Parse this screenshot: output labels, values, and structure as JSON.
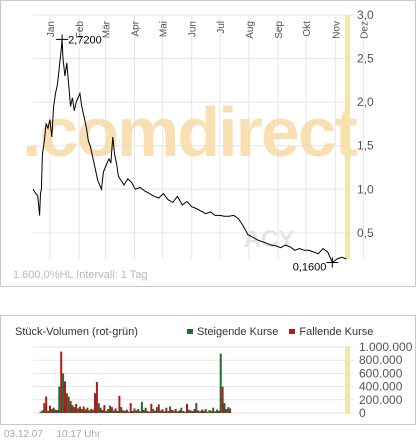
{
  "watermark": {
    "brand": ".comdirect",
    "ticker": "ACY"
  },
  "footer": {
    "interval_text": "1.600,0%HL Intervall: 1 Tag"
  },
  "timestamp": {
    "date": "03.12.07",
    "time": "10:17 Uhr"
  },
  "colors": {
    "rising": "#1a6e2e",
    "falling": "#b01c1c",
    "highlight": "#f5e5a8",
    "watermark_orange": "#f7dba6",
    "watermark_gray": "#e4e4e4",
    "line": "#000000"
  },
  "chart_data": [
    {
      "type": "line",
      "title": "",
      "x_ticks": [
        "Jan",
        "Feb",
        "Mär",
        "Apr",
        "Mai",
        "Jun",
        "Jul",
        "Aug",
        "Sep",
        "Okt",
        "Nov",
        "Dez"
      ],
      "y_ticks": [
        "0,5",
        "1,0",
        "1,5",
        "2,0",
        "2,5",
        "3,0"
      ],
      "ylim": [
        0.2,
        3.0
      ],
      "grid": true,
      "annotations": [
        {
          "label": "2,7200",
          "value": 2.72,
          "date": "2007-02-01"
        },
        {
          "label": "0,1600",
          "value": 0.16,
          "date": "2007-11-16"
        }
      ],
      "series": [
        {
          "x": [
            "2007-01-01",
            "2007-01-04",
            "2007-01-06",
            "2007-01-08",
            "2007-01-09",
            "2007-01-10",
            "2007-01-11",
            "2007-01-13",
            "2007-01-15",
            "2007-01-17",
            "2007-01-19",
            "2007-01-21",
            "2007-01-23",
            "2007-01-25",
            "2007-01-27",
            "2007-01-29",
            "2007-01-31",
            "2007-02-01",
            "2007-02-02",
            "2007-02-04",
            "2007-02-06",
            "2007-02-08",
            "2007-02-10",
            "2007-02-12",
            "2007-02-14",
            "2007-02-16",
            "2007-02-18",
            "2007-02-20",
            "2007-02-22",
            "2007-02-24",
            "2007-02-27",
            "2007-03-01",
            "2007-03-03",
            "2007-03-05",
            "2007-03-07",
            "2007-03-09",
            "2007-03-11",
            "2007-03-13",
            "2007-03-15",
            "2007-03-17",
            "2007-03-19",
            "2007-03-21",
            "2007-03-23",
            "2007-03-25",
            "2007-03-26",
            "2007-03-27",
            "2007-03-29",
            "2007-03-31",
            "2007-04-02",
            "2007-04-05",
            "2007-04-08",
            "2007-04-12",
            "2007-04-16",
            "2007-04-20",
            "2007-04-25",
            "2007-04-30",
            "2007-05-05",
            "2007-05-10",
            "2007-05-15",
            "2007-05-20",
            "2007-05-25",
            "2007-05-30",
            "2007-06-04",
            "2007-06-09",
            "2007-06-14",
            "2007-06-19",
            "2007-06-24",
            "2007-06-29",
            "2007-07-04",
            "2007-07-09",
            "2007-07-14",
            "2007-07-19",
            "2007-07-24",
            "2007-07-29",
            "2007-08-03",
            "2007-08-08",
            "2007-08-13",
            "2007-08-18",
            "2007-08-23",
            "2007-08-28",
            "2007-09-02",
            "2007-09-07",
            "2007-09-12",
            "2007-09-17",
            "2007-09-22",
            "2007-09-27",
            "2007-10-02",
            "2007-10-07",
            "2007-10-12",
            "2007-10-17",
            "2007-10-22",
            "2007-10-27",
            "2007-11-01",
            "2007-11-06",
            "2007-11-11",
            "2007-11-16",
            "2007-11-21",
            "2007-11-26",
            "2007-12-01"
          ],
          "values": [
            1.0,
            0.95,
            0.93,
            0.7,
            0.95,
            1.0,
            1.4,
            1.55,
            1.75,
            1.7,
            1.8,
            1.6,
            1.95,
            2.1,
            2.2,
            2.4,
            2.6,
            2.72,
            2.5,
            2.3,
            2.45,
            2.2,
            1.95,
            2.05,
            1.9,
            2.0,
            2.05,
            2.1,
            1.95,
            1.85,
            1.7,
            1.55,
            1.5,
            1.4,
            1.3,
            1.2,
            1.1,
            1.05,
            1.0,
            1.2,
            1.25,
            1.3,
            1.35,
            1.3,
            1.45,
            1.6,
            1.4,
            1.3,
            1.15,
            1.1,
            1.05,
            1.12,
            1.08,
            1.0,
            1.02,
            0.98,
            0.95,
            0.92,
            0.9,
            0.95,
            0.88,
            0.85,
            0.92,
            0.82,
            0.86,
            0.8,
            0.78,
            0.75,
            0.72,
            0.74,
            0.7,
            0.7,
            0.69,
            0.69,
            0.7,
            0.66,
            0.58,
            0.48,
            0.45,
            0.42,
            0.4,
            0.38,
            0.36,
            0.35,
            0.33,
            0.36,
            0.34,
            0.3,
            0.32,
            0.3,
            0.3,
            0.28,
            0.26,
            0.32,
            0.28,
            0.16,
            0.2,
            0.22,
            0.2
          ]
        }
      ]
    },
    {
      "type": "bar",
      "title": "Stück-Volumen (rot-grün)",
      "y_ticks": [
        "0",
        "200.000",
        "400.000",
        "600.000",
        "800.000",
        "1.000.000"
      ],
      "ylim": [
        0,
        1000000
      ],
      "series": [
        {
          "name": "Steigende Kurse",
          "color": "#1a6e2e"
        },
        {
          "name": "Fallende Kurse",
          "color": "#b01c1c"
        }
      ],
      "bars": {
        "start_date": "2007-01-08",
        "step_days": 2,
        "values": [
          20000,
          40000,
          150000,
          250000,
          35000,
          110000,
          60000,
          80000,
          50000,
          45000,
          400000,
          930000,
          600000,
          480000,
          300000,
          250000,
          180000,
          120000,
          90000,
          140000,
          70000,
          95000,
          60000,
          100000,
          55000,
          80000,
          40000,
          60000,
          50000,
          300000,
          470000,
          150000,
          80000,
          45000,
          120000,
          30000,
          60000,
          110000,
          90000,
          40000,
          70000,
          30000,
          260000,
          90000,
          40000,
          35000,
          50000,
          20000,
          150000,
          30000,
          70000,
          40000,
          60000,
          25000,
          170000,
          45000,
          80000,
          30000,
          20000,
          140000,
          60000,
          35000,
          90000,
          130000,
          40000,
          55000,
          25000,
          80000,
          30000,
          100000,
          45000,
          35000,
          60000,
          25000,
          40000,
          80000,
          30000,
          20000,
          140000,
          50000,
          40000,
          30000,
          60000,
          150000,
          40000,
          25000,
          50000,
          35000,
          60000,
          20000,
          45000,
          30000,
          80000,
          25000,
          50000,
          35000,
          900000,
          400000,
          150000,
          60000,
          90000,
          70000
        ],
        "directions": [
          "up",
          "up",
          "down",
          "down",
          "up",
          "down",
          "up",
          "down",
          "up",
          "down",
          "up",
          "down",
          "up",
          "down",
          "down",
          "up",
          "down",
          "up",
          "down",
          "down",
          "up",
          "down",
          "up",
          "down",
          "up",
          "down",
          "up",
          "down",
          "up",
          "down",
          "down",
          "up",
          "down",
          "up",
          "down",
          "up",
          "down",
          "up",
          "down",
          "up",
          "down",
          "up",
          "down",
          "up",
          "down",
          "up",
          "down",
          "up",
          "down",
          "down",
          "up",
          "down",
          "up",
          "down",
          "up",
          "down",
          "up",
          "down",
          "up",
          "down",
          "up",
          "down",
          "up",
          "down",
          "up",
          "down",
          "up",
          "down",
          "down",
          "up",
          "down",
          "up",
          "down",
          "up",
          "down",
          "up",
          "down",
          "up",
          "down",
          "up",
          "down",
          "up",
          "down",
          "up",
          "down",
          "up",
          "down",
          "down",
          "up",
          "down",
          "up",
          "down",
          "up",
          "down",
          "up",
          "down",
          "up",
          "down",
          "up",
          "down",
          "up",
          "down"
        ]
      }
    }
  ]
}
